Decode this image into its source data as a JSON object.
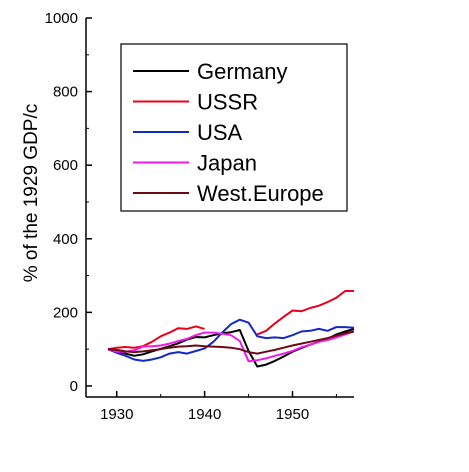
{
  "chart_data": {
    "type": "line",
    "title": "",
    "xlabel": "",
    "ylabel": "% of the 1929 GDP/c",
    "xlim": [
      1926.5,
      1957
    ],
    "ylim": [
      -30,
      1000
    ],
    "x_ticks": [
      "1930",
      "1940",
      "1950"
    ],
    "y_ticks": [
      "0",
      "200",
      "400",
      "600",
      "800",
      "1000"
    ],
    "grid": false,
    "legend_position": "top-right",
    "series": [
      {
        "name": "Germany",
        "color": "#000000",
        "x": [
          1929,
          1930,
          1931,
          1932,
          1933,
          1934,
          1935,
          1936,
          1937,
          1938,
          1939,
          1940,
          1941,
          1942,
          1943,
          1944,
          1945,
          1946,
          1947,
          1948,
          1949,
          1950,
          1951,
          1952,
          1953,
          1954,
          1955,
          1956,
          1957
        ],
        "values": [
          100,
          95,
          88,
          82,
          86,
          94,
          101,
          108,
          116,
          126,
          133,
          132,
          138,
          143,
          146,
          152,
          95,
          53,
          58,
          68,
          80,
          93,
          103,
          112,
          120,
          128,
          140,
          148,
          155
        ]
      },
      {
        "name": "USSR",
        "color": "#e8001c",
        "x": [
          1929,
          1930,
          1931,
          1932,
          1933,
          1934,
          1935,
          1936,
          1937,
          1938,
          1939,
          1940,
          1946,
          1947,
          1948,
          1949,
          1950,
          1951,
          1952,
          1953,
          1954,
          1955,
          1956,
          1957
        ],
        "values": [
          100,
          104,
          106,
          104,
          108,
          120,
          135,
          145,
          157,
          155,
          162,
          155,
          140,
          150,
          170,
          188,
          205,
          203,
          212,
          218,
          228,
          240,
          258,
          258
        ]
      },
      {
        "name": "USA",
        "color": "#1428c8",
        "x": [
          1929,
          1930,
          1931,
          1932,
          1933,
          1934,
          1935,
          1936,
          1937,
          1938,
          1939,
          1940,
          1941,
          1942,
          1943,
          1944,
          1945,
          1946,
          1947,
          1948,
          1949,
          1950,
          1951,
          1952,
          1953,
          1954,
          1955,
          1956,
          1957
        ],
        "values": [
          100,
          90,
          82,
          72,
          68,
          72,
          78,
          88,
          92,
          88,
          95,
          102,
          120,
          145,
          168,
          180,
          172,
          135,
          130,
          132,
          130,
          138,
          148,
          150,
          155,
          150,
          160,
          160,
          158
        ]
      },
      {
        "name": "Japan",
        "color": "#f019e6",
        "x": [
          1929,
          1930,
          1931,
          1932,
          1933,
          1934,
          1935,
          1936,
          1937,
          1938,
          1939,
          1940,
          1941,
          1942,
          1943,
          1944,
          1945,
          1946,
          1947,
          1948,
          1949,
          1950,
          1951,
          1952,
          1953,
          1954,
          1955,
          1956,
          1957
        ],
        "values": [
          100,
          93,
          93,
          97,
          107,
          108,
          110,
          115,
          122,
          128,
          138,
          145,
          145,
          142,
          138,
          122,
          67,
          70,
          75,
          82,
          88,
          95,
          105,
          112,
          120,
          125,
          132,
          140,
          148
        ]
      },
      {
        "name": "West.Europe",
        "color": "#6b0a14",
        "x": [
          1929,
          1930,
          1931,
          1932,
          1933,
          1934,
          1935,
          1936,
          1937,
          1938,
          1939,
          1940,
          1941,
          1942,
          1943,
          1944,
          1945,
          1946,
          1947,
          1948,
          1949,
          1950,
          1951,
          1952,
          1953,
          1954,
          1955,
          1956,
          1957
        ],
        "values": [
          100,
          98,
          94,
          92,
          94,
          97,
          100,
          104,
          107,
          108,
          110,
          108,
          107,
          106,
          104,
          100,
          92,
          88,
          93,
          98,
          104,
          110,
          115,
          120,
          125,
          130,
          137,
          143,
          148
        ]
      }
    ]
  }
}
